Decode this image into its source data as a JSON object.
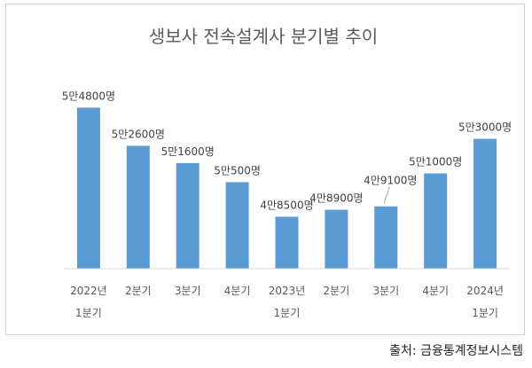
{
  "chart_data": {
    "type": "bar",
    "title": "생보사 전속설계사 분기별 추이",
    "categories": [
      [
        "2022년",
        "1분기"
      ],
      [
        "2분기"
      ],
      [
        "3분기"
      ],
      [
        "4분기"
      ],
      [
        "2023년",
        "1분기"
      ],
      [
        "2분기"
      ],
      [
        "3분기"
      ],
      [
        "4분기"
      ],
      [
        "2024년",
        "1분기"
      ]
    ],
    "values": [
      54800,
      52600,
      51600,
      50500,
      48500,
      48900,
      49100,
      51000,
      53000
    ],
    "data_labels": [
      "5만4800명",
      "5만2600명",
      "5만1600명",
      "5만500명",
      "4만8500명",
      "4만8900명",
      "4만9100명",
      "5만1000명",
      "5만3000명"
    ],
    "ylim": [
      45500,
      56000
    ],
    "xlabel": "",
    "ylabel": "",
    "legend": "none",
    "grid": false,
    "bar_color": "#5b9bd5"
  },
  "source": "출처: 금융통계정보시스템"
}
